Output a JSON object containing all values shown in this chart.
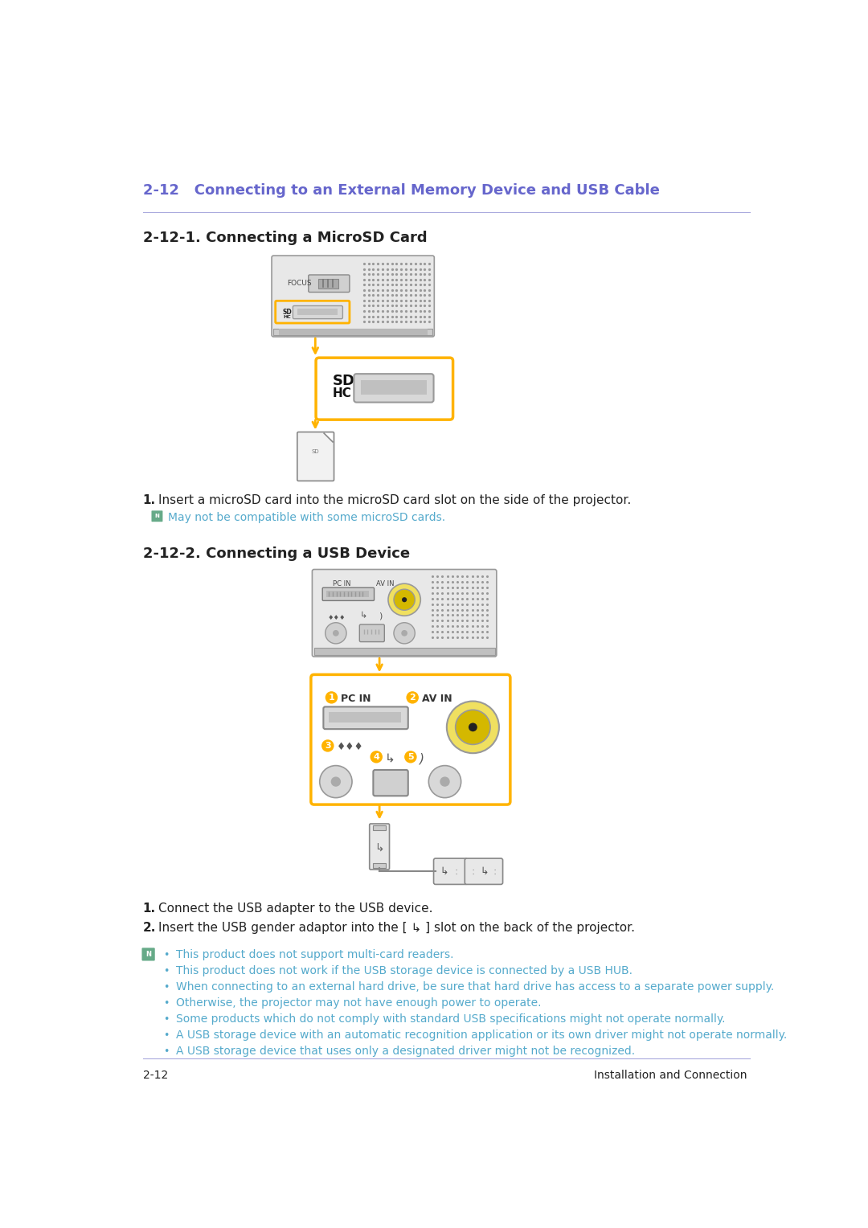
{
  "title": "2-12   Connecting to an External Memory Device and USB Cable",
  "title_color": "#6666cc",
  "section1_title": "2-12-1. Connecting a MicroSD Card",
  "section2_title": "2-12-2. Connecting a USB Device",
  "bg_color": "#ffffff",
  "footer_left": "2-12",
  "footer_right": "Installation and Connection",
  "step1_microsd": "Insert a microSD card into the microSD card slot on the side of the projector.",
  "note_microsd": "May not be compatible with some microSD cards.",
  "step1_usb": "Connect the USB adapter to the USB device.",
  "step2_usb": "Insert the USB gender adaptor into the [ ↳ ] slot on the back of the projector.",
  "notes_usb": [
    "This product does not support multi-card readers.",
    "This product does not work if the USB storage device is connected by a USB HUB.",
    "When connecting to an external hard drive, be sure that hard drive has access to a separate power supply.",
    "Otherwise, the projector may not have enough power to operate.",
    "Some products which do not comply with standard USB specifications might not operate normally.",
    "A USB storage device with an automatic recognition application or its own driver might not operate normally.",
    "A USB storage device that uses only a designated driver might not be recognized."
  ],
  "note_bullet_color": "#55aacc",
  "note_first_color": "#55aacc",
  "text_color": "#222222",
  "accent_blue": "#6666cc",
  "orange": "#FFB300",
  "gray_border": "#999999",
  "gray_body": "#e8e8e8",
  "gray_slot": "#c8c8c8",
  "dot_color": "#999999"
}
